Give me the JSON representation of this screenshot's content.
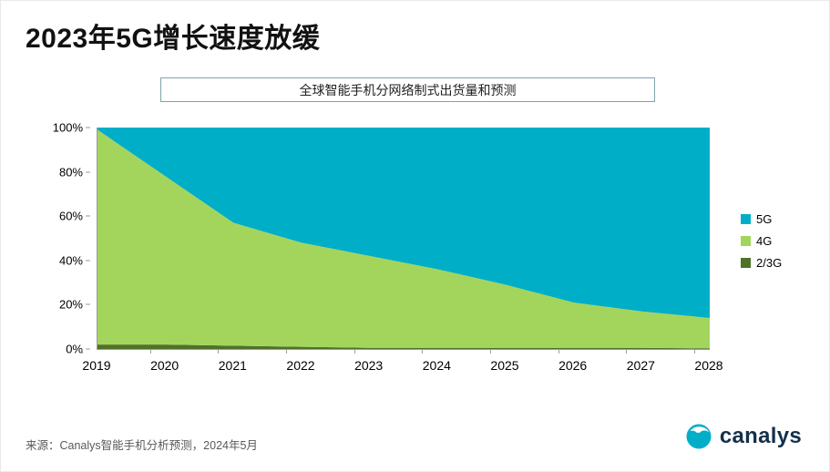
{
  "page": {
    "title": "2023年5G增长速度放缓",
    "subtitle": "全球智能手机分网络制式出货量和预测",
    "source": "来源：Canalys智能手机分析预测，2024年5月",
    "logo_text": "canalys"
  },
  "colors": {
    "teal_5g": "#00aec7",
    "green_4g": "#a3d55d",
    "dark_23g": "#4f7228",
    "logo_navy": "#15304b",
    "axis_gray": "#9a9a9a"
  },
  "chart_data": {
    "type": "area",
    "stacked": true,
    "title": "全球智能手机分网络制式出货量和预测",
    "xlabel": "",
    "ylabel": "",
    "x": [
      2019,
      2020,
      2021,
      2022,
      2023,
      2024,
      2025,
      2026,
      2027,
      2028
    ],
    "series": [
      {
        "name": "5G",
        "color": "#00aec7",
        "values": [
          1,
          22,
          43,
          52,
          58,
          64,
          71,
          79,
          83,
          86
        ]
      },
      {
        "name": "4G",
        "color": "#a3d55d",
        "values": [
          97,
          76,
          55.5,
          47,
          41.5,
          35.5,
          28.5,
          20.5,
          16.5,
          13.7
        ]
      },
      {
        "name": "2/3G",
        "color": "#4f7228",
        "values": [
          2,
          2,
          1.5,
          1,
          0.5,
          0.5,
          0.5,
          0.5,
          0.5,
          0.3
        ]
      }
    ],
    "ylim": [
      0,
      100
    ],
    "yticks": [
      "0%",
      "20%",
      "40%",
      "60%",
      "80%",
      "100%"
    ],
    "xticks": [
      "2019",
      "2020",
      "2021",
      "2022",
      "2023",
      "2024",
      "2025",
      "2026",
      "2027",
      "2028"
    ],
    "legend": [
      "5G",
      "4G",
      "2/3G"
    ],
    "legend_position": "right",
    "grid": false
  }
}
